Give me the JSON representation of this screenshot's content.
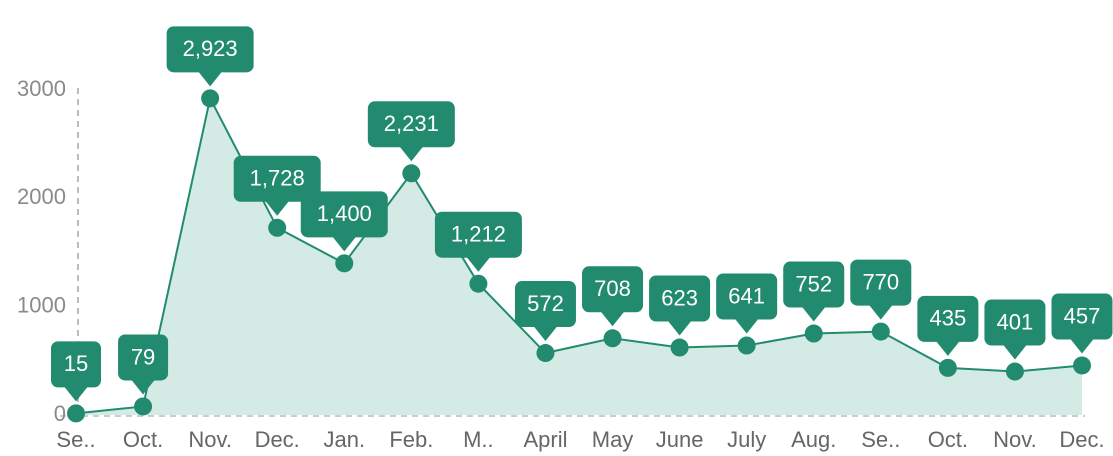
{
  "chart_data": {
    "type": "area",
    "categories": [
      "Se..",
      "Oct.",
      "Nov.",
      "Dec.",
      "Jan.",
      "Feb.",
      "M..",
      "April",
      "May",
      "June",
      "July",
      "Aug.",
      "Se..",
      "Oct.",
      "Nov.",
      "Dec."
    ],
    "values": [
      15,
      79,
      2923,
      1728,
      1400,
      2231,
      1212,
      572,
      708,
      623,
      641,
      752,
      770,
      435,
      401,
      457
    ],
    "value_labels": [
      "15",
      "79",
      "2,923",
      "1,728",
      "1,400",
      "2,231",
      "1,212",
      "572",
      "708",
      "623",
      "641",
      "752",
      "770",
      "435",
      "401",
      "457"
    ],
    "color": "#228b6f",
    "fill_color": "#d3ebe4",
    "ylim": [
      0,
      3000
    ],
    "yticks": [
      0,
      1000,
      2000,
      3000
    ],
    "grid": false
  }
}
